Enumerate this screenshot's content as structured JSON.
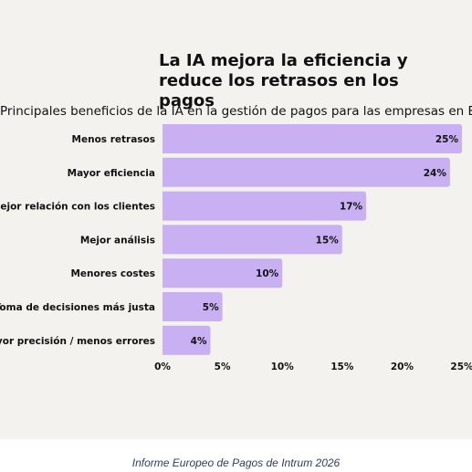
{
  "title": "La IA mejora la eficiencia y reduce los retrasos en los pagos",
  "subtitle": "Principales beneficios de la IA en la gestión de pagos para las empresas en España",
  "caption": "Informe Europeo de Pagos de Intrum 2026",
  "colors": {
    "bar": "#c8b0f2",
    "background": "#f4f2ef",
    "text": "#111111",
    "caption": "#2d3f63"
  },
  "chart_data": {
    "type": "bar",
    "orientation": "horizontal",
    "categories": [
      "Menos retrasos",
      "Mayor eficiencia",
      "Mejor relación con los clientes",
      "Mejor análisis",
      "Menores costes",
      "Toma de decisiones más justa",
      "Mayor precisión / menos errores"
    ],
    "values": [
      25,
      24,
      17,
      15,
      10,
      5,
      4
    ],
    "value_labels": [
      "25%",
      "24%",
      "17%",
      "15%",
      "10%",
      "5%",
      "4%"
    ],
    "xlim": [
      0,
      25
    ],
    "xticks": [
      0,
      5,
      10,
      15,
      20,
      25
    ],
    "xtick_labels": [
      "0%",
      "5%",
      "10%",
      "15%",
      "20%",
      "25%"
    ],
    "grid": false
  }
}
